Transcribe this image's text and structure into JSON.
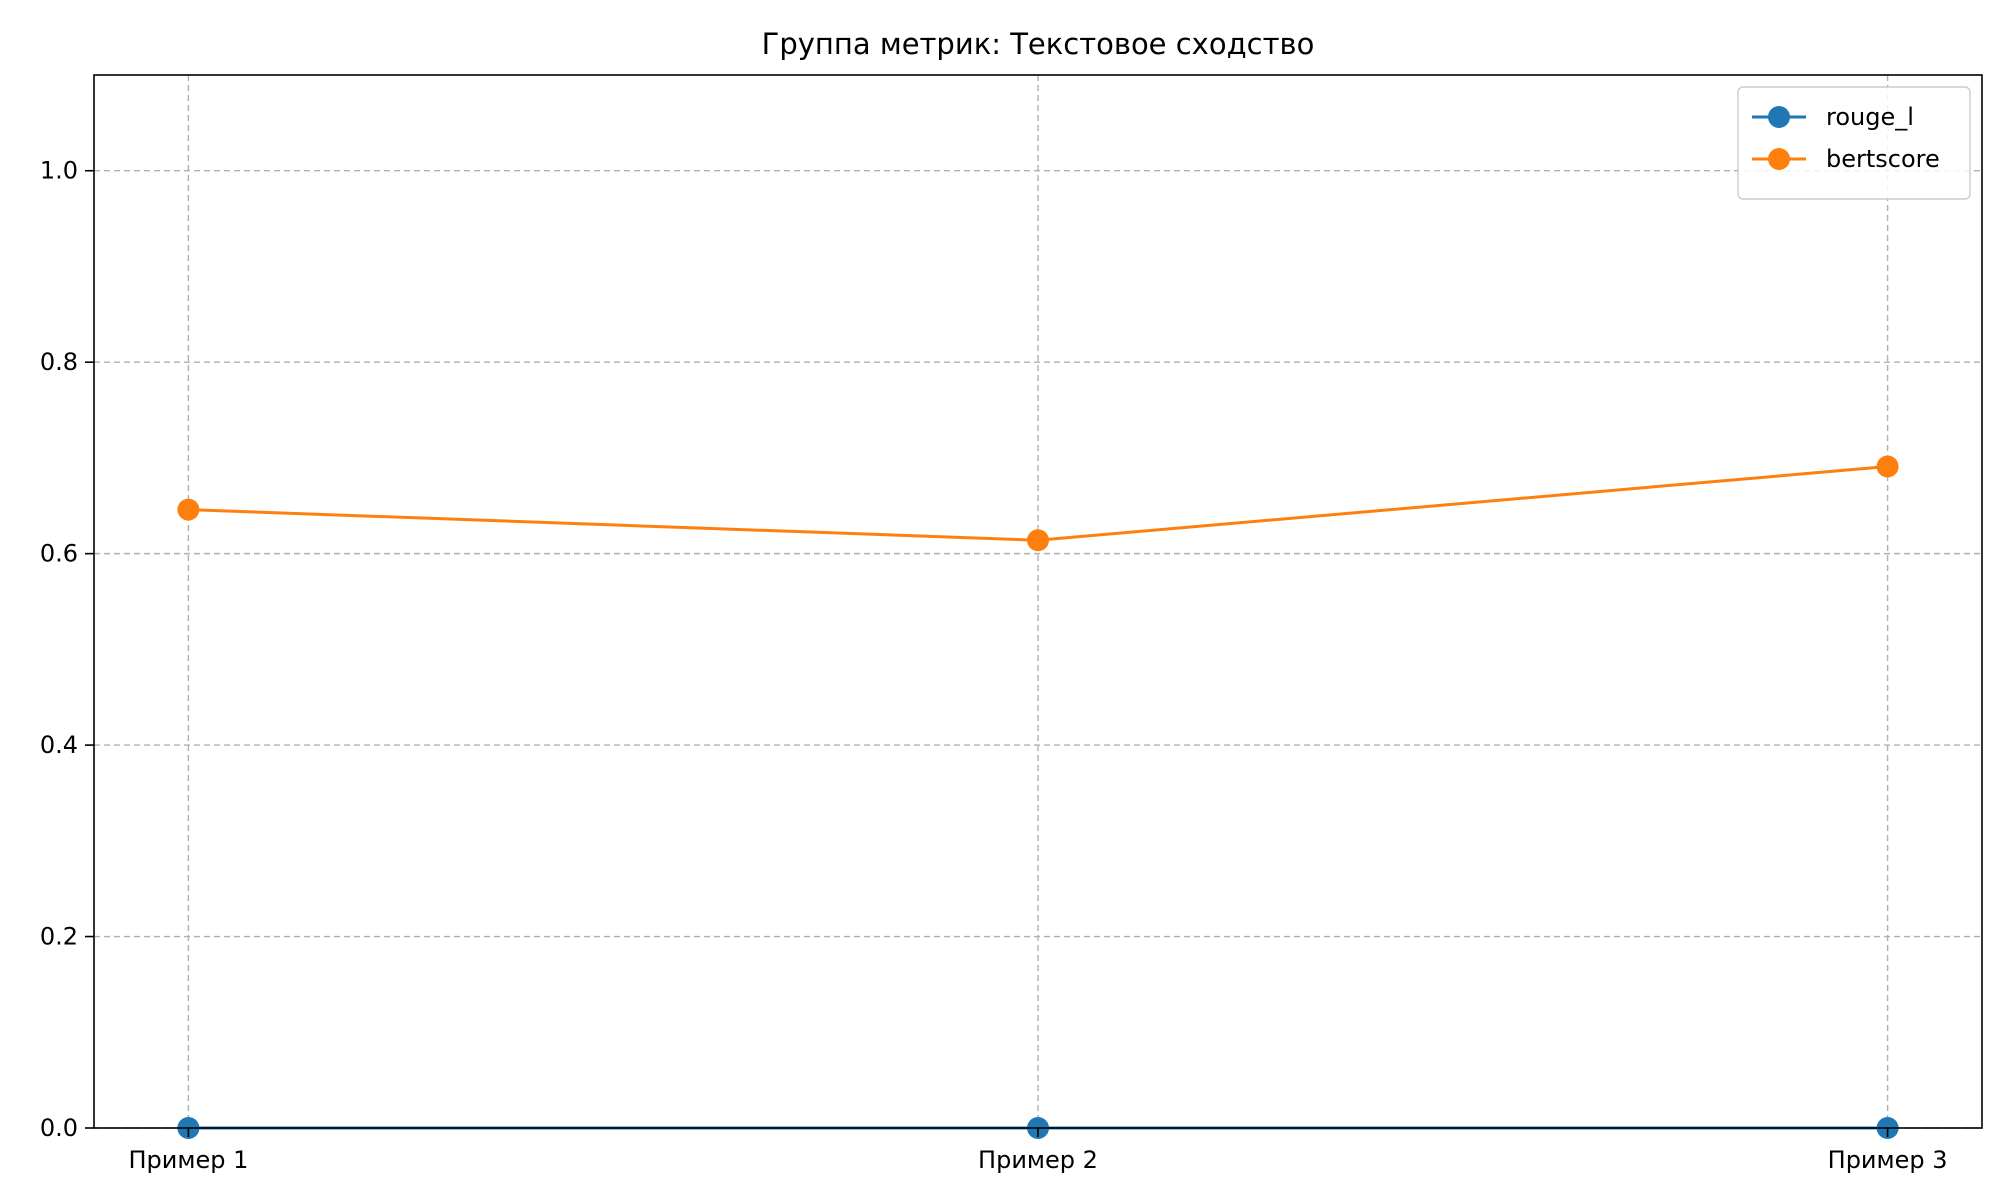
{
  "chart_data": {
    "type": "line",
    "title": "Группа метрик: Текстовое сходство",
    "xlabel": "",
    "ylabel": "",
    "categories": [
      "Пример 1",
      "Пример 2",
      "Пример 3"
    ],
    "ylim": [
      0,
      1.1
    ],
    "yticks": [
      "0.0",
      "0.2",
      "0.4",
      "0.6",
      "0.8",
      "1.0"
    ],
    "grid": true,
    "legend_position": "top-right",
    "series": [
      {
        "name": "rouge_l",
        "color": "#1f77b4",
        "marker": "circle",
        "values": [
          0.0,
          0.0,
          0.0
        ]
      },
      {
        "name": "bertscore",
        "color": "#ff7f0e",
        "marker": "circle",
        "values": [
          0.646,
          0.614,
          0.691
        ]
      }
    ]
  }
}
